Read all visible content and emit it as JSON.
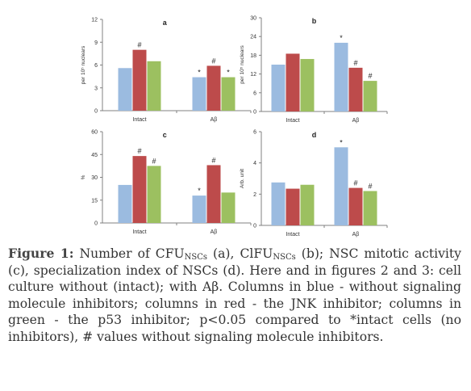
{
  "colors": {
    "blue": "#9bbbe0",
    "red": "#bd4b4b",
    "green": "#9cc060",
    "axis": "#808080",
    "text": "#333333"
  },
  "chart_data": [
    {
      "type": "bar",
      "panel_label": "a",
      "categories": [
        "Intact",
        "Aβ"
      ],
      "ylabel": "per 10⁵ nuclears",
      "ylim": [
        0,
        12
      ],
      "yticks": [
        0,
        3,
        6,
        9,
        12
      ],
      "series": [
        {
          "color": "blue",
          "values": [
            5.6,
            4.4
          ]
        },
        {
          "color": "red",
          "values": [
            8.0,
            5.9
          ]
        },
        {
          "color": "green",
          "values": [
            6.5,
            4.4
          ]
        }
      ],
      "annotations": [
        {
          "category": 0,
          "series": 1,
          "text": "#"
        },
        {
          "category": 1,
          "series": 0,
          "text": "*"
        },
        {
          "category": 1,
          "series": 1,
          "text": "#"
        },
        {
          "category": 1,
          "series": 2,
          "text": "*"
        }
      ]
    },
    {
      "type": "bar",
      "panel_label": "b",
      "categories": [
        "Intact",
        "Aβ"
      ],
      "ylabel": "per 10⁵ nuclears",
      "ylim": [
        0,
        30
      ],
      "yticks": [
        0,
        6,
        12,
        18,
        24,
        30
      ],
      "series": [
        {
          "color": "blue",
          "values": [
            15.0,
            22.0
          ]
        },
        {
          "color": "red",
          "values": [
            18.5,
            14.0
          ]
        },
        {
          "color": "green",
          "values": [
            16.8,
            9.8
          ]
        }
      ],
      "annotations": [
        {
          "category": 1,
          "series": 0,
          "text": "*"
        },
        {
          "category": 1,
          "series": 1,
          "text": "#"
        },
        {
          "category": 1,
          "series": 2,
          "text": "#"
        }
      ]
    },
    {
      "type": "bar",
      "panel_label": "c",
      "categories": [
        "Intact",
        "Aβ"
      ],
      "ylabel": "%",
      "ylim": [
        0,
        60
      ],
      "yticks": [
        0,
        15,
        30,
        45,
        60
      ],
      "series": [
        {
          "color": "blue",
          "values": [
            25.0,
            18.0
          ]
        },
        {
          "color": "red",
          "values": [
            44.0,
            38.0
          ]
        },
        {
          "color": "green",
          "values": [
            37.5,
            20.0
          ]
        }
      ],
      "annotations": [
        {
          "category": 0,
          "series": 1,
          "text": "#"
        },
        {
          "category": 0,
          "series": 2,
          "text": "#"
        },
        {
          "category": 1,
          "series": 0,
          "text": "*"
        },
        {
          "category": 1,
          "series": 1,
          "text": "#"
        }
      ]
    },
    {
      "type": "bar",
      "panel_label": "d",
      "categories": [
        "Intact",
        "Aβ"
      ],
      "ylabel": "Arb. unit",
      "ylim": [
        0,
        6
      ],
      "yticks": [
        0,
        2,
        4,
        6
      ],
      "series": [
        {
          "color": "blue",
          "values": [
            2.75,
            5.0
          ]
        },
        {
          "color": "red",
          "values": [
            2.35,
            2.4
          ]
        },
        {
          "color": "green",
          "values": [
            2.6,
            2.2
          ]
        }
      ],
      "annotations": [
        {
          "category": 1,
          "series": 0,
          "text": "*"
        },
        {
          "category": 1,
          "series": 1,
          "text": "#"
        },
        {
          "category": 1,
          "series": 2,
          "text": "#"
        }
      ]
    }
  ],
  "caption": {
    "label": "Figure 1:",
    "segments": [
      {
        "t": "  Number of CFU"
      },
      {
        "t": "NSCs",
        "sub": true
      },
      {
        "t": " (a), ClFU"
      },
      {
        "t": "NSCs",
        "sub": true
      },
      {
        "t": " (b); NSC mitotic activity (c), specialization index of NSCs  (d). Here and in figures 2 and 3: cell culture without (intact); with Aβ. Columns in blue - without signaling molecule inhibitors; columns in red - the JNK inhibitor; columns in green - the p53 inhibitor; p<0.05 compared to *intact cells (no inhibitors), # values without signaling molecule inhibitors."
      }
    ]
  }
}
